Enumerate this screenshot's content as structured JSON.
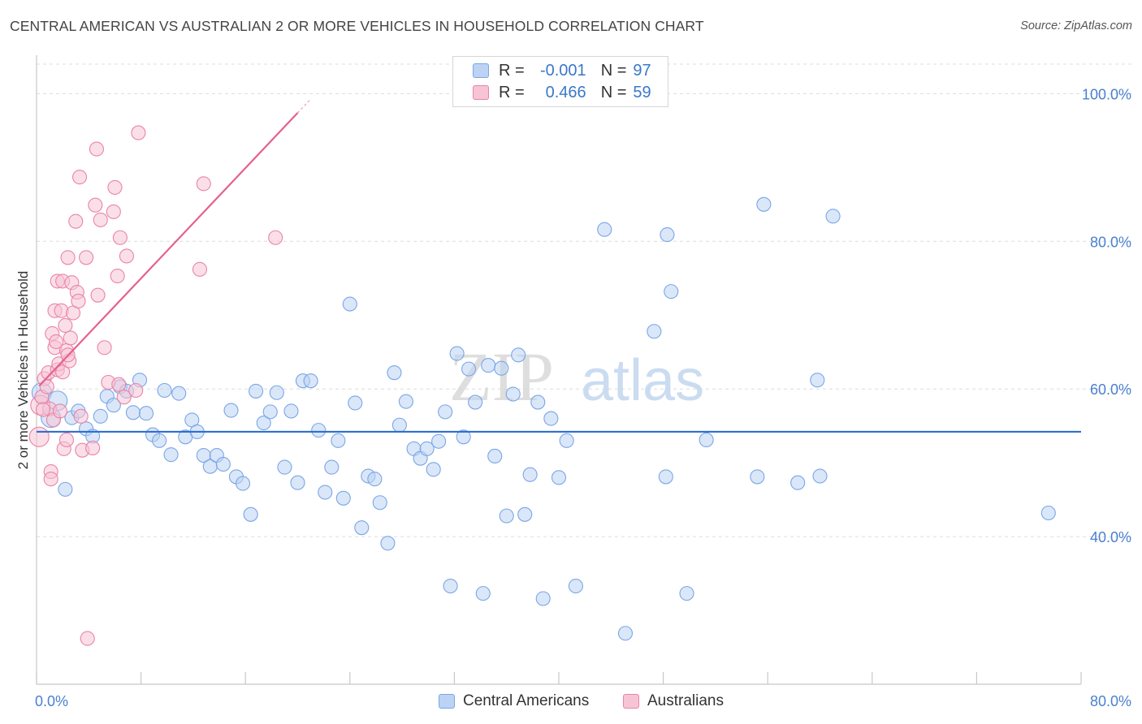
{
  "title": "CENTRAL AMERICAN VS AUSTRALIAN 2 OR MORE VEHICLES IN HOUSEHOLD CORRELATION CHART",
  "source": "Source: ZipAtlas.com",
  "watermark": {
    "zip": "ZIP",
    "atlas": "atlas"
  },
  "legend": {
    "r_label": "R =",
    "n_label": "N =",
    "series": [
      {
        "name": "Central Americans",
        "r": "-0.001",
        "n": "97",
        "color": "#7aa6e6",
        "fill": "#bcd3f4"
      },
      {
        "name": "Australians",
        "r": "0.466",
        "n": "59",
        "color": "#e984a6",
        "fill": "#f7c4d5"
      }
    ]
  },
  "chart_data": {
    "type": "scatter",
    "title": "CENTRAL AMERICAN VS AUSTRALIAN 2 OR MORE VEHICLES IN HOUSEHOLD CORRELATION CHART",
    "xlabel": "",
    "ylabel": "2 or more Vehicles in Household",
    "xlim": [
      0,
      80
    ],
    "ylim": [
      20,
      104
    ],
    "x_tick_labels": [
      "0.0%",
      "80.0%"
    ],
    "y_tick_labels": [
      "40.0%",
      "60.0%",
      "80.0%",
      "100.0%"
    ],
    "y_ticks": [
      40,
      60,
      80,
      100
    ],
    "grid": true,
    "legend_position": "top-center",
    "series": [
      {
        "name": "Central Americans",
        "color": "#5b8fd9",
        "trend": {
          "x": [
            0,
            80
          ],
          "y": [
            54.2,
            54.2
          ]
        },
        "points": [
          [
            0.4,
            59.5
          ],
          [
            1.1,
            56.1
          ],
          [
            1.6,
            58.4
          ],
          [
            2.2,
            46.4
          ],
          [
            2.7,
            56.1
          ],
          [
            3.2,
            57.0
          ],
          [
            3.8,
            54.6
          ],
          [
            4.3,
            53.6
          ],
          [
            4.9,
            56.3
          ],
          [
            5.4,
            59.0
          ],
          [
            5.9,
            57.8
          ],
          [
            6.4,
            60.3
          ],
          [
            6.9,
            59.7
          ],
          [
            7.4,
            56.8
          ],
          [
            7.9,
            61.2
          ],
          [
            8.4,
            56.7
          ],
          [
            8.9,
            53.8
          ],
          [
            9.4,
            53.0
          ],
          [
            9.8,
            59.8
          ],
          [
            10.3,
            51.1
          ],
          [
            10.9,
            59.4
          ],
          [
            11.4,
            53.5
          ],
          [
            11.9,
            55.8
          ],
          [
            12.3,
            54.2
          ],
          [
            12.8,
            51.0
          ],
          [
            13.3,
            49.5
          ],
          [
            13.8,
            51.0
          ],
          [
            14.3,
            49.8
          ],
          [
            14.9,
            57.1
          ],
          [
            15.3,
            48.1
          ],
          [
            15.8,
            47.2
          ],
          [
            16.4,
            43.0
          ],
          [
            16.8,
            59.7
          ],
          [
            17.4,
            55.4
          ],
          [
            17.9,
            56.9
          ],
          [
            18.4,
            59.5
          ],
          [
            19.0,
            49.4
          ],
          [
            19.5,
            57.0
          ],
          [
            20.0,
            47.3
          ],
          [
            20.4,
            61.1
          ],
          [
            21.0,
            61.1
          ],
          [
            21.6,
            54.4
          ],
          [
            22.1,
            46.0
          ],
          [
            22.6,
            49.4
          ],
          [
            23.1,
            53.0
          ],
          [
            23.5,
            45.2
          ],
          [
            24.0,
            71.5
          ],
          [
            24.4,
            58.1
          ],
          [
            24.9,
            41.2
          ],
          [
            25.4,
            48.2
          ],
          [
            25.9,
            47.8
          ],
          [
            26.3,
            44.6
          ],
          [
            26.9,
            39.1
          ],
          [
            27.4,
            62.2
          ],
          [
            27.8,
            55.1
          ],
          [
            28.3,
            58.3
          ],
          [
            28.9,
            51.9
          ],
          [
            29.4,
            50.6
          ],
          [
            29.9,
            51.9
          ],
          [
            30.4,
            49.1
          ],
          [
            30.8,
            52.9
          ],
          [
            31.3,
            56.9
          ],
          [
            31.7,
            33.3
          ],
          [
            32.2,
            64.8
          ],
          [
            32.7,
            53.5
          ],
          [
            33.1,
            62.7
          ],
          [
            33.6,
            58.2
          ],
          [
            34.2,
            32.3
          ],
          [
            34.6,
            63.2
          ],
          [
            35.1,
            50.9
          ],
          [
            35.6,
            62.8
          ],
          [
            36.0,
            42.8
          ],
          [
            36.5,
            59.3
          ],
          [
            36.9,
            64.6
          ],
          [
            37.4,
            43.0
          ],
          [
            37.8,
            48.4
          ],
          [
            38.4,
            58.2
          ],
          [
            38.8,
            31.6
          ],
          [
            39.4,
            56.0
          ],
          [
            40.0,
            48.0
          ],
          [
            40.6,
            53.0
          ],
          [
            41.3,
            33.3
          ],
          [
            43.5,
            81.6
          ],
          [
            45.1,
            26.9
          ],
          [
            47.3,
            67.8
          ],
          [
            48.2,
            48.1
          ],
          [
            48.3,
            80.9
          ],
          [
            48.6,
            73.2
          ],
          [
            49.8,
            32.3
          ],
          [
            51.3,
            53.1
          ],
          [
            55.2,
            48.1
          ],
          [
            55.7,
            85.0
          ],
          [
            58.3,
            47.3
          ],
          [
            59.8,
            61.2
          ],
          [
            60.0,
            48.2
          ],
          [
            61.0,
            83.4
          ],
          [
            77.5,
            43.2
          ]
        ]
      },
      {
        "name": "Australians",
        "color": "#e56a94",
        "trend": {
          "x": [
            0.2,
            20.0
          ],
          "y": [
            60.4,
            97.4
          ]
        },
        "points": [
          [
            0.2,
            53.5
          ],
          [
            0.3,
            57.8
          ],
          [
            0.4,
            58.9
          ],
          [
            0.6,
            61.4
          ],
          [
            0.8,
            60.3
          ],
          [
            0.9,
            62.2
          ],
          [
            1.0,
            57.3
          ],
          [
            1.1,
            48.8
          ],
          [
            1.1,
            47.8
          ],
          [
            1.2,
            67.5
          ],
          [
            1.3,
            55.8
          ],
          [
            1.4,
            65.6
          ],
          [
            1.4,
            70.6
          ],
          [
            1.5,
            66.4
          ],
          [
            1.6,
            74.6
          ],
          [
            1.6,
            62.6
          ],
          [
            1.7,
            63.4
          ],
          [
            1.8,
            57.0
          ],
          [
            1.9,
            70.6
          ],
          [
            2.0,
            74.6
          ],
          [
            2.0,
            62.3
          ],
          [
            2.1,
            51.9
          ],
          [
            2.2,
            68.6
          ],
          [
            2.3,
            53.1
          ],
          [
            2.3,
            65.2
          ],
          [
            2.4,
            77.8
          ],
          [
            2.5,
            63.8
          ],
          [
            2.6,
            66.9
          ],
          [
            2.7,
            74.4
          ],
          [
            2.8,
            70.3
          ],
          [
            3.0,
            82.7
          ],
          [
            3.1,
            73.1
          ],
          [
            3.2,
            71.9
          ],
          [
            3.3,
            88.7
          ],
          [
            3.4,
            56.3
          ],
          [
            3.5,
            51.7
          ],
          [
            3.8,
            77.8
          ],
          [
            3.9,
            26.2
          ],
          [
            4.3,
            52.0
          ],
          [
            4.5,
            84.9
          ],
          [
            4.6,
            92.5
          ],
          [
            4.7,
            72.7
          ],
          [
            4.9,
            82.9
          ],
          [
            5.2,
            65.6
          ],
          [
            5.5,
            60.9
          ],
          [
            5.9,
            84.0
          ],
          [
            6.0,
            87.3
          ],
          [
            6.2,
            75.3
          ],
          [
            6.3,
            60.6
          ],
          [
            6.4,
            80.5
          ],
          [
            6.7,
            58.9
          ],
          [
            6.9,
            78.0
          ],
          [
            7.6,
            59.8
          ],
          [
            7.8,
            94.7
          ],
          [
            12.5,
            76.2
          ],
          [
            12.8,
            87.8
          ],
          [
            18.3,
            80.5
          ],
          [
            0.5,
            57.2
          ],
          [
            2.4,
            64.6
          ]
        ]
      }
    ]
  }
}
